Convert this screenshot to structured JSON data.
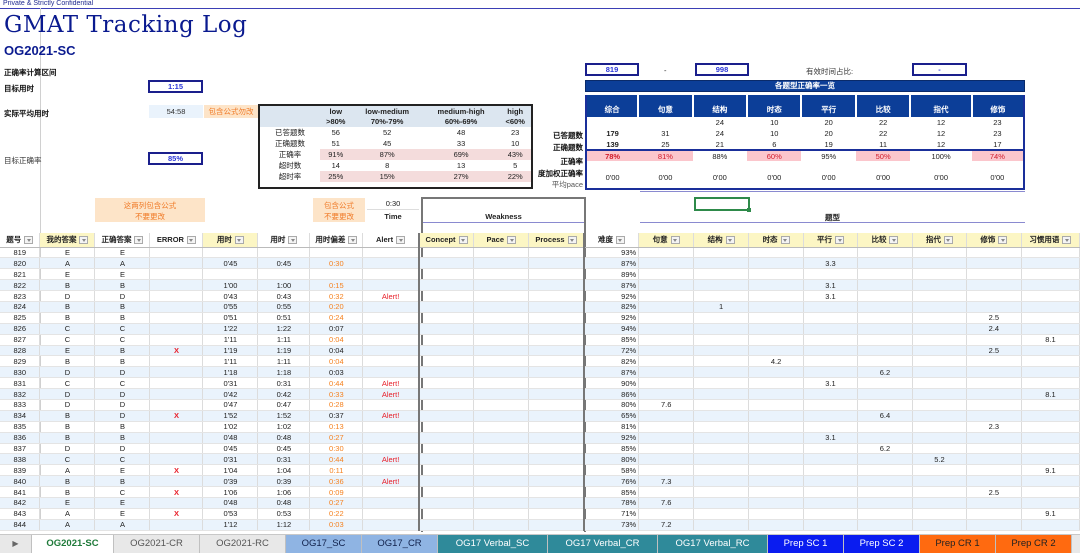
{
  "confidential": "Private & Strictly Confidential",
  "title": "GMAT Tracking Log",
  "subtitle": "OG2021-SC",
  "left_panel": {
    "range_label": "正确率计算区间",
    "target_time_label": "目标用时",
    "target_time": "1:15",
    "avg_time_label": "实际平均用时",
    "avg_time": "54:58",
    "formula_note": "包含公式勿改",
    "target_accuracy_label": "目标正确率",
    "target_accuracy": "85%"
  },
  "range": {
    "from": "819",
    "dash": "-",
    "to": "998",
    "effective_label": "有效时间占比:",
    "effective_value": "-"
  },
  "difficulty_table": {
    "headers": [
      [
        "low",
        ">80%"
      ],
      [
        "low-medium",
        "70%-79%"
      ],
      [
        "medium-high",
        "60%-69%"
      ],
      [
        "high",
        "<60%"
      ]
    ],
    "rows": [
      {
        "label": "已答题数",
        "values": [
          "56",
          "52",
          "48",
          "23"
        ],
        "pink": false
      },
      {
        "label": "正确题数",
        "values": [
          "51",
          "45",
          "33",
          "10"
        ],
        "pink": false
      },
      {
        "label": "正确率",
        "values": [
          "91%",
          "87%",
          "69%",
          "43%"
        ],
        "pink": true
      },
      {
        "label": "超时数",
        "values": [
          "14",
          "8",
          "13",
          "5"
        ],
        "pink": false
      },
      {
        "label": "超时率",
        "values": [
          "25%",
          "15%",
          "27%",
          "22%"
        ],
        "pink": true
      }
    ]
  },
  "type_table": {
    "banner": "各题型正确率一览",
    "headers": [
      "综合",
      "句意",
      "结构",
      "时态",
      "平行",
      "比较",
      "指代",
      "修饰"
    ],
    "row0": [
      "",
      "",
      "24",
      "10",
      "20",
      "22",
      "12",
      "23"
    ],
    "row_labels": [
      "已答题数",
      "正确题数",
      "正确率",
      "度加权正确率",
      "平均pace"
    ],
    "answered": [
      "179",
      "31",
      "24",
      "10",
      "20",
      "22",
      "12",
      "23"
    ],
    "correct": [
      "139",
      "25",
      "21",
      "6",
      "19",
      "11",
      "12",
      "17"
    ],
    "rate": [
      "78%",
      "81%",
      "88%",
      "60%",
      "95%",
      "50%",
      "100%",
      "74%"
    ],
    "rate_pink": [
      true,
      true,
      false,
      true,
      false,
      true,
      false,
      true
    ],
    "weighted": [
      "",
      "",
      "",
      "",
      "",
      "",
      "",
      ""
    ],
    "pace": [
      "0'00",
      "0'00",
      "0'00",
      "0'00",
      "0'00",
      "0'00",
      "0'00",
      "0'00"
    ]
  },
  "notes": {
    "two_cols_line1": "这两列包含公式",
    "two_cols_line2": "不要更改",
    "formula_line1": "包含公式",
    "formula_line2": "不要更改",
    "time_value": "0:30",
    "time_label": "Time",
    "weakness_label": "Weakness",
    "type_label": "题型"
  },
  "grid": {
    "headers": [
      "题号",
      "我的答案",
      "正确答案",
      "ERROR",
      "用时",
      "用时",
      "用时偏差",
      "Alert",
      "Concept",
      "Pace",
      "Process",
      "难度",
      "句意",
      "结构",
      "时态",
      "平行",
      "比较",
      "指代",
      "修饰",
      "习惯用语"
    ],
    "rows": [
      [
        "819",
        "E",
        "E",
        "",
        "",
        "",
        "",
        "",
        "",
        "",
        "",
        "93%",
        "",
        "",
        "",
        "",
        "",
        "",
        "",
        ""
      ],
      [
        "820",
        "A",
        "A",
        "",
        "0'45",
        "0:45",
        "0:30",
        "",
        "",
        "",
        "",
        "87%",
        "",
        "",
        "",
        "3.3",
        "",
        "",
        "",
        ""
      ],
      [
        "821",
        "E",
        "E",
        "",
        "",
        "",
        "",
        "",
        "",
        "",
        "",
        "89%",
        "",
        "",
        "",
        "",
        "",
        "",
        "",
        ""
      ],
      [
        "822",
        "B",
        "B",
        "",
        "1'00",
        "1:00",
        "0:15",
        "",
        "",
        "",
        "",
        "87%",
        "",
        "",
        "",
        "3.1",
        "",
        "",
        "",
        ""
      ],
      [
        "823",
        "D",
        "D",
        "",
        "0'43",
        "0:43",
        "0:32",
        "Alert!",
        "",
        "",
        "",
        "92%",
        "",
        "",
        "",
        "3.1",
        "",
        "",
        "",
        ""
      ],
      [
        "824",
        "B",
        "B",
        "",
        "0'55",
        "0:55",
        "0:20",
        "",
        "",
        "",
        "",
        "82%",
        "",
        "1",
        "",
        "",
        "",
        "",
        "",
        ""
      ],
      [
        "825",
        "B",
        "B",
        "",
        "0'51",
        "0:51",
        "0:24",
        "",
        "",
        "",
        "",
        "92%",
        "",
        "",
        "",
        "",
        "",
        "",
        "2.5",
        ""
      ],
      [
        "826",
        "C",
        "C",
        "",
        "1'22",
        "1:22",
        "0:07",
        "",
        "",
        "",
        "",
        "94%",
        "",
        "",
        "",
        "",
        "",
        "",
        "2.4",
        ""
      ],
      [
        "827",
        "C",
        "C",
        "",
        "1'11",
        "1:11",
        "0:04",
        "",
        "",
        "",
        "",
        "85%",
        "",
        "",
        "",
        "",
        "",
        "",
        "",
        "8.1"
      ],
      [
        "828",
        "E",
        "B",
        "X",
        "1'19",
        "1:19",
        "0:04",
        "",
        "",
        "",
        "",
        "72%",
        "",
        "",
        "",
        "",
        "",
        "",
        "2.5",
        ""
      ],
      [
        "829",
        "B",
        "B",
        "",
        "1'11",
        "1:11",
        "0:04",
        "",
        "",
        "",
        "",
        "82%",
        "",
        "",
        "4.2",
        "",
        "",
        "",
        "",
        ""
      ],
      [
        "830",
        "D",
        "D",
        "",
        "1'18",
        "1:18",
        "0:03",
        "",
        "",
        "",
        "",
        "87%",
        "",
        "",
        "",
        "",
        "6.2",
        "",
        "",
        ""
      ],
      [
        "831",
        "C",
        "C",
        "",
        "0'31",
        "0:31",
        "0:44",
        "Alert!",
        "",
        "",
        "",
        "90%",
        "",
        "",
        "",
        "3.1",
        "",
        "",
        "",
        ""
      ],
      [
        "832",
        "D",
        "D",
        "",
        "0'42",
        "0:42",
        "0:33",
        "Alert!",
        "",
        "",
        "",
        "86%",
        "",
        "",
        "",
        "",
        "",
        "",
        "",
        "8.1"
      ],
      [
        "833",
        "D",
        "D",
        "",
        "0'47",
        "0:47",
        "0:28",
        "",
        "",
        "",
        "",
        "80%",
        "7.6",
        "",
        "",
        "",
        "",
        "",
        "",
        ""
      ],
      [
        "834",
        "B",
        "D",
        "X",
        "1'52",
        "1:52",
        "0:37",
        "Alert!",
        "",
        "",
        "",
        "65%",
        "",
        "",
        "",
        "",
        "6.4",
        "",
        "",
        ""
      ],
      [
        "835",
        "B",
        "B",
        "",
        "1'02",
        "1:02",
        "0:13",
        "",
        "",
        "",
        "",
        "81%",
        "",
        "",
        "",
        "",
        "",
        "",
        "2.3",
        ""
      ],
      [
        "836",
        "B",
        "B",
        "",
        "0'48",
        "0:48",
        "0:27",
        "",
        "",
        "",
        "",
        "92%",
        "",
        "",
        "",
        "3.1",
        "",
        "",
        "",
        ""
      ],
      [
        "837",
        "D",
        "D",
        "",
        "0'45",
        "0:45",
        "0:30",
        "",
        "",
        "",
        "",
        "85%",
        "",
        "",
        "",
        "",
        "6.2",
        "",
        "",
        ""
      ],
      [
        "838",
        "C",
        "C",
        "",
        "0'31",
        "0:31",
        "0:44",
        "Alert!",
        "",
        "",
        "",
        "80%",
        "",
        "",
        "",
        "",
        "",
        "5.2",
        "",
        ""
      ],
      [
        "839",
        "A",
        "E",
        "X",
        "1'04",
        "1:04",
        "0:11",
        "",
        "",
        "",
        "",
        "58%",
        "",
        "",
        "",
        "",
        "",
        "",
        "",
        "9.1"
      ],
      [
        "840",
        "B",
        "B",
        "",
        "0'39",
        "0:39",
        "0:36",
        "Alert!",
        "",
        "",
        "",
        "76%",
        "7.3",
        "",
        "",
        "",
        "",
        "",
        "",
        ""
      ],
      [
        "841",
        "B",
        "C",
        "X",
        "1'06",
        "1:06",
        "0:09",
        "",
        "",
        "",
        "",
        "85%",
        "",
        "",
        "",
        "",
        "",
        "",
        "2.5",
        ""
      ],
      [
        "842",
        "E",
        "E",
        "",
        "0'48",
        "0:48",
        "0:27",
        "",
        "",
        "",
        "",
        "78%",
        "7.6",
        "",
        "",
        "",
        "",
        "",
        "",
        ""
      ],
      [
        "843",
        "A",
        "E",
        "X",
        "0'53",
        "0:53",
        "0:22",
        "",
        "",
        "",
        "",
        "71%",
        "",
        "",
        "",
        "",
        "",
        "",
        "",
        "9.1"
      ],
      [
        "844",
        "A",
        "A",
        "",
        "1'12",
        "1:12",
        "0:03",
        "",
        "",
        "",
        "",
        "73%",
        "7.2",
        "",
        "",
        "",
        "",
        "",
        "",
        ""
      ]
    ],
    "deviation_orange": [
      true,
      true,
      true,
      true,
      true,
      true,
      true,
      false,
      true,
      false,
      true,
      false,
      true,
      true,
      true,
      false,
      true,
      true,
      true,
      true,
      true,
      true,
      true,
      true,
      true,
      true
    ]
  },
  "tabs": [
    {
      "label": "OG2021-SC",
      "active": true,
      "bg": "#ffffff",
      "color": "#1f7a3a"
    },
    {
      "label": "OG2021-CR",
      "active": false,
      "bg": "#e8e8e8",
      "color": "#555555"
    },
    {
      "label": "OG2021-RC",
      "active": false,
      "bg": "#e8e8e8",
      "color": "#555555"
    },
    {
      "label": "OG17_SC",
      "active": false,
      "bg": "#8fb4e3",
      "color": "#10204a"
    },
    {
      "label": "OG17_CR",
      "active": false,
      "bg": "#8fb4e3",
      "color": "#10204a"
    },
    {
      "label": "OG17 Verbal_SC",
      "active": false,
      "bg": "#2f8a9a",
      "color": "#ffffff"
    },
    {
      "label": "OG17 Verbal_CR",
      "active": false,
      "bg": "#2f8a9a",
      "color": "#ffffff"
    },
    {
      "label": "OG17 Verbal_RC",
      "active": false,
      "bg": "#2f8a9a",
      "color": "#ffffff"
    },
    {
      "label": "Prep SC 1",
      "active": false,
      "bg": "#0a1cf0",
      "color": "#ffffff"
    },
    {
      "label": "Prep SC 2",
      "active": false,
      "bg": "#0a1cf0",
      "color": "#ffffff"
    },
    {
      "label": "Prep CR 1",
      "active": false,
      "bg": "#ff6a10",
      "color": "#222222"
    },
    {
      "label": "Prep CR 2",
      "active": false,
      "bg": "#ff6a10",
      "color": "#222222"
    }
  ]
}
